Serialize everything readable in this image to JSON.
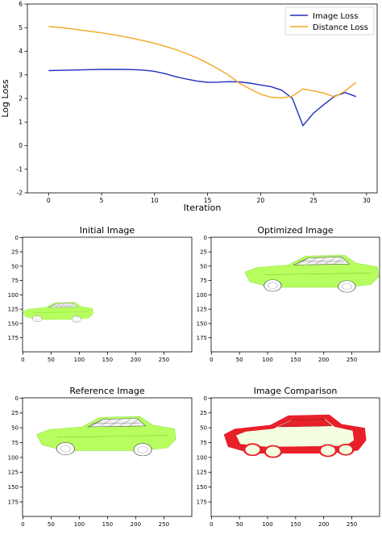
{
  "chart_data": [
    {
      "type": "line",
      "title": "",
      "xlabel": "Iteration",
      "ylabel": "Log Loss",
      "xlim": [
        -2,
        31
      ],
      "ylim": [
        -2,
        6
      ],
      "xticks": [
        0,
        5,
        10,
        15,
        20,
        25,
        30
      ],
      "yticks": [
        -2,
        -1,
        0,
        1,
        2,
        3,
        4,
        5,
        6
      ],
      "grid": false,
      "legend_position": "top-right",
      "x": [
        0,
        1,
        2,
        3,
        4,
        5,
        6,
        7,
        8,
        9,
        10,
        11,
        12,
        13,
        14,
        15,
        16,
        17,
        18,
        19,
        20,
        21,
        22,
        23,
        24,
        25,
        26,
        27,
        28,
        29
      ],
      "series": [
        {
          "name": "Image Loss",
          "color": "#1f2fbf",
          "values": [
            3.18,
            3.19,
            3.2,
            3.21,
            3.22,
            3.23,
            3.23,
            3.23,
            3.22,
            3.2,
            3.15,
            3.05,
            2.92,
            2.82,
            2.74,
            2.68,
            2.69,
            2.71,
            2.7,
            2.65,
            2.57,
            2.5,
            2.35,
            2.0,
            0.85,
            1.38,
            1.75,
            2.1,
            2.25,
            2.08
          ]
        },
        {
          "name": "Distance Loss",
          "color": "#f5a623",
          "values": [
            5.05,
            5.01,
            4.96,
            4.9,
            4.84,
            4.78,
            4.71,
            4.63,
            4.54,
            4.44,
            4.34,
            4.21,
            4.07,
            3.9,
            3.72,
            3.5,
            3.25,
            2.98,
            2.65,
            2.4,
            2.18,
            2.05,
            2.02,
            2.1,
            2.4,
            2.32,
            2.22,
            2.07,
            2.32,
            2.68
          ]
        }
      ]
    },
    {
      "type": "image",
      "title": "Initial Image",
      "xticks": [
        0,
        50,
        100,
        150,
        200,
        250
      ],
      "yticks": [
        0,
        25,
        50,
        75,
        100,
        125,
        150,
        175
      ]
    },
    {
      "type": "image",
      "title": "Optimized Image",
      "xticks": [
        0,
        50,
        100,
        150,
        200,
        250
      ],
      "yticks": [
        0,
        25,
        50,
        75,
        100,
        125,
        150,
        175
      ]
    },
    {
      "type": "image",
      "title": "Reference Image",
      "xticks": [
        0,
        50,
        100,
        150,
        200,
        250
      ],
      "yticks": [
        0,
        25,
        50,
        75,
        100,
        125,
        150,
        175
      ]
    },
    {
      "type": "image",
      "title": "Image Comparison",
      "xticks": [
        0,
        50,
        100,
        150,
        200,
        250
      ],
      "yticks": [
        0,
        25,
        50,
        75,
        100,
        125,
        150,
        175
      ]
    }
  ],
  "colors": {
    "car_body": "#b6ff5e",
    "comparison_diff": "#e8202a",
    "comparison_same": "#f3ffe0",
    "wheel": "#ffffff"
  }
}
